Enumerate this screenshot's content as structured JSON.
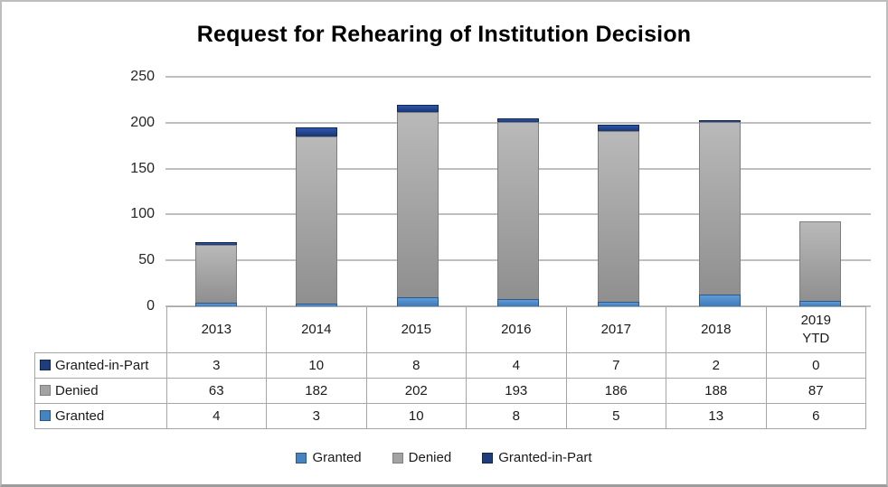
{
  "title": "Request for Rehearing of Institution Decision",
  "chart_data": {
    "type": "bar",
    "stacked": true,
    "title": "Request for Rehearing of Institution Decision",
    "categories": [
      "2013",
      "2014",
      "2015",
      "2016",
      "2017",
      "2018",
      "2019\nYTD"
    ],
    "series": [
      {
        "name": "Granted",
        "color": "#4684c0",
        "border_color": "#2c578a",
        "values": [
          4,
          3,
          10,
          8,
          5,
          13,
          6
        ]
      },
      {
        "name": "Denied",
        "color": "#a3a3a3",
        "border_color": "#7e7e7e",
        "values": [
          63,
          182,
          202,
          193,
          186,
          188,
          87
        ]
      },
      {
        "name": "Granted-in-Part",
        "color": "#1f3d7d",
        "border_color": "#122750",
        "values": [
          3,
          10,
          8,
          4,
          7,
          2,
          0
        ]
      }
    ],
    "stack_order_bottom_to_top": [
      "Granted",
      "Denied",
      "Granted-in-Part"
    ],
    "table_row_order_top_to_bottom": [
      "Granted-in-Part",
      "Denied",
      "Granted"
    ],
    "legend_order": [
      "Granted",
      "Denied",
      "Granted-in-Part"
    ],
    "legend_position": "bottom",
    "xlabel": "",
    "ylabel": "",
    "ylim": [
      0,
      250
    ],
    "yticks": [
      0,
      50,
      100,
      150,
      200,
      250
    ],
    "grid": true,
    "gridline_color": "#bfbfbf",
    "icons": {
      "series_swatch": "legend-swatch-square"
    }
  }
}
